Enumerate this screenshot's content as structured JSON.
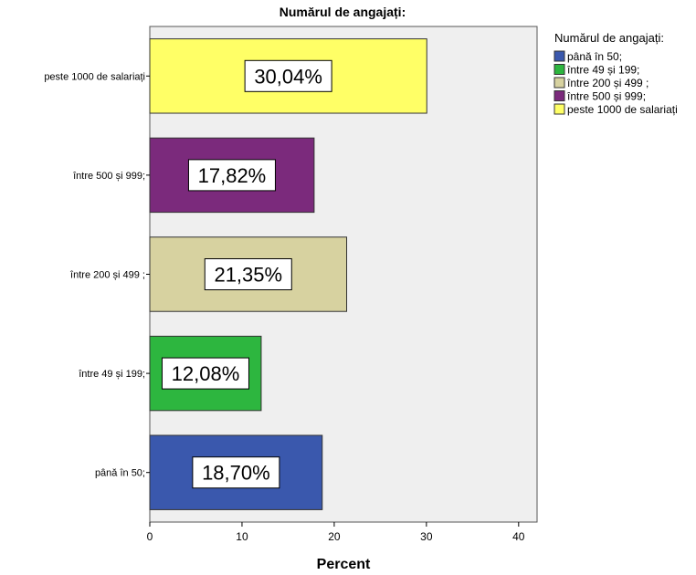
{
  "chart_data": {
    "type": "bar",
    "orientation": "horizontal",
    "title": "Numărul de angajați:",
    "xlabel": "Percent",
    "ylabel": "",
    "xlim": [
      0,
      42
    ],
    "x_ticks": [
      0,
      10,
      20,
      30,
      40
    ],
    "grid": false,
    "categories": [
      "peste 1000 de salariați",
      "între 500 și 999;",
      "între 200 și 499 ;",
      "între 49 și 199;",
      "până în 50;"
    ],
    "values": [
      30.04,
      17.82,
      21.35,
      12.08,
      18.7
    ],
    "data_labels": [
      "30,04%",
      "17,82%",
      "21,35%",
      "12,08%",
      "18,70%"
    ],
    "colors": [
      "#ffff66",
      "#7b2a7c",
      "#d7d2a0",
      "#2db63f",
      "#3a58ad"
    ],
    "legend": {
      "title": "Numărul de angajați:",
      "placement": "right",
      "items": [
        {
          "label": "până în 50;",
          "color": "#3a58ad"
        },
        {
          "label": "între 49 și 199;",
          "color": "#2db63f"
        },
        {
          "label": "între 200 și 499 ;",
          "color": "#d7d2a0"
        },
        {
          "label": "între 500 și 999;",
          "color": "#7b2a7c"
        },
        {
          "label": "peste 1000 de salariați",
          "color": "#ffff66"
        }
      ]
    }
  }
}
